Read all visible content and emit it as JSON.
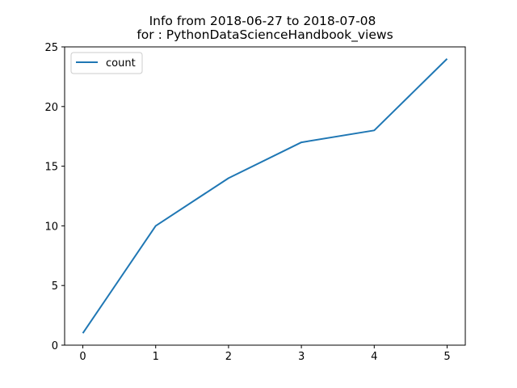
{
  "chart_data": {
    "type": "line",
    "title": "Info from 2018-06-27 to 2018-07-08",
    "subtitle": "for  : PythonDataScienceHandbook_views",
    "xlabel": "",
    "ylabel": "",
    "x": [
      0,
      1,
      2,
      3,
      4,
      5
    ],
    "series": [
      {
        "name": "count",
        "values": [
          1,
          10,
          14,
          17,
          18,
          24
        ],
        "color": "#1f77b4"
      }
    ],
    "xlim": [
      -0.25,
      5.25
    ],
    "ylim": [
      0,
      25
    ],
    "x_ticks": [
      "0",
      "1",
      "2",
      "3",
      "4",
      "5"
    ],
    "y_ticks": [
      "0",
      "5",
      "10",
      "15",
      "20",
      "25"
    ],
    "grid": false,
    "legend_position": "upper-left"
  }
}
